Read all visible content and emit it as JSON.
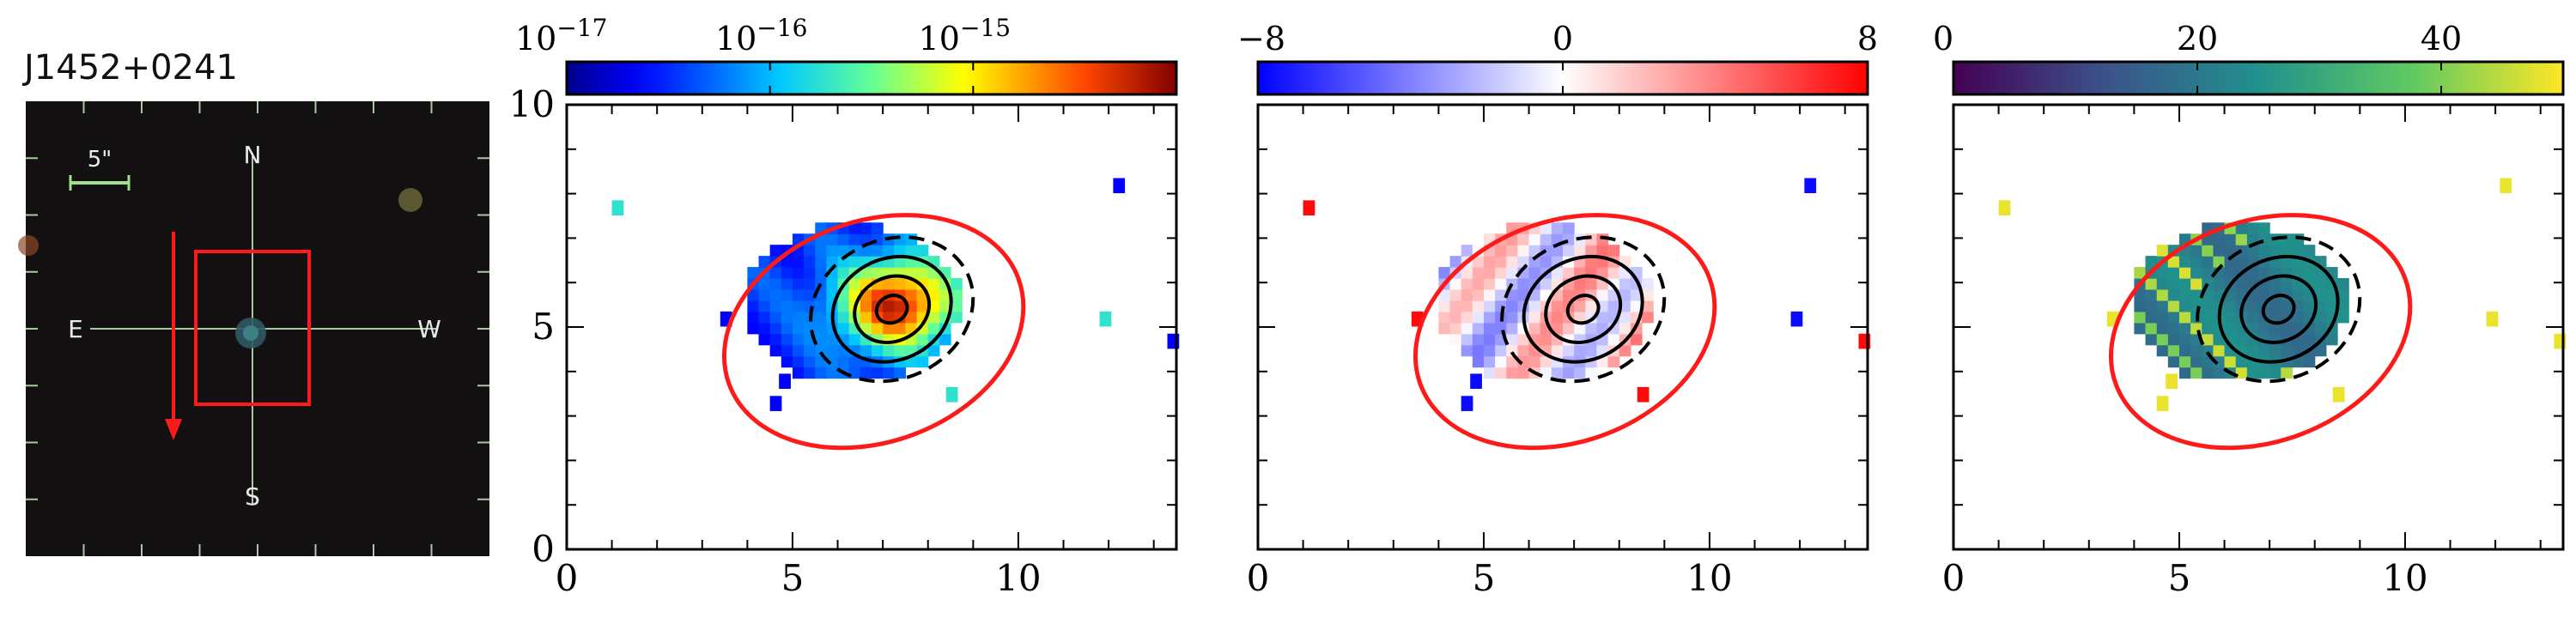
{
  "object_name": "J1452+0241",
  "thumbnail": {
    "scale_label": "5\"",
    "compass": {
      "north": "N",
      "south": "S",
      "east": "E",
      "west": "W"
    },
    "colors": {
      "background": "#121010",
      "grid": "#a9c9a4",
      "box": "#ff1a1a",
      "arrow": "#ff1a1a",
      "scale_bar": "#9ee08c"
    }
  },
  "chart_data": [
    {
      "type": "heatmap",
      "xlim": [
        0,
        13.5
      ],
      "ylim": [
        0,
        10
      ],
      "xticks": [
        0,
        5,
        10
      ],
      "xtick_labels": [
        "0",
        "5",
        "10"
      ],
      "yticks": [
        0,
        5,
        10
      ],
      "ytick_labels": [
        "0",
        "5",
        "10"
      ],
      "colorbar": {
        "colormap": "jet",
        "scale": "log",
        "range": [
          1e-17,
          1e-14
        ],
        "ticks": [
          1e-17,
          1e-16,
          1e-15
        ],
        "tick_labels": [
          {
            "base": "10",
            "exp": "−17"
          },
          {
            "base": "10",
            "exp": "−16"
          },
          {
            "base": "10",
            "exp": "−15"
          }
        ]
      },
      "ellipse": {
        "center": [
          6.8,
          4.9
        ],
        "semi_axes": [
          6.2,
          2.7
        ],
        "angle_deg": -20,
        "color": "#ff1a1a"
      },
      "contours": {
        "center": [
          7.2,
          5.4
        ],
        "levels_count": 4,
        "color": "#000000"
      }
    },
    {
      "type": "heatmap",
      "xlim": [
        0,
        13.5
      ],
      "ylim": [
        0,
        10
      ],
      "xticks": [
        0,
        5,
        10
      ],
      "xtick_labels": [
        "0",
        "5",
        "10"
      ],
      "colorbar": {
        "colormap": "bwr",
        "scale": "linear",
        "range": [
          -8,
          8
        ],
        "ticks": [
          -8,
          0,
          8
        ],
        "tick_labels": [
          "−8",
          "0",
          "8"
        ]
      },
      "ellipse": {
        "center": [
          6.8,
          4.9
        ],
        "semi_axes": [
          6.2,
          2.7
        ],
        "angle_deg": -20,
        "color": "#ff1a1a"
      },
      "contours": {
        "center": [
          7.2,
          5.4
        ],
        "levels_count": 4,
        "color": "#000000"
      }
    },
    {
      "type": "heatmap",
      "xlim": [
        0,
        13.5
      ],
      "ylim": [
        0,
        10
      ],
      "xticks": [
        0,
        5,
        10
      ],
      "xtick_labels": [
        "0",
        "5",
        "10"
      ],
      "colorbar": {
        "colormap": "viridis",
        "scale": "linear",
        "range": [
          0,
          50
        ],
        "ticks": [
          0,
          20,
          40
        ],
        "tick_labels": [
          "0",
          "20",
          "40"
        ]
      },
      "ellipse": {
        "center": [
          6.8,
          4.9
        ],
        "semi_axes": [
          6.2,
          2.7
        ],
        "angle_deg": -20,
        "color": "#ff1a1a"
      },
      "contours": {
        "center": [
          7.2,
          5.4
        ],
        "levels_count": 4,
        "color": "#000000"
      }
    }
  ]
}
